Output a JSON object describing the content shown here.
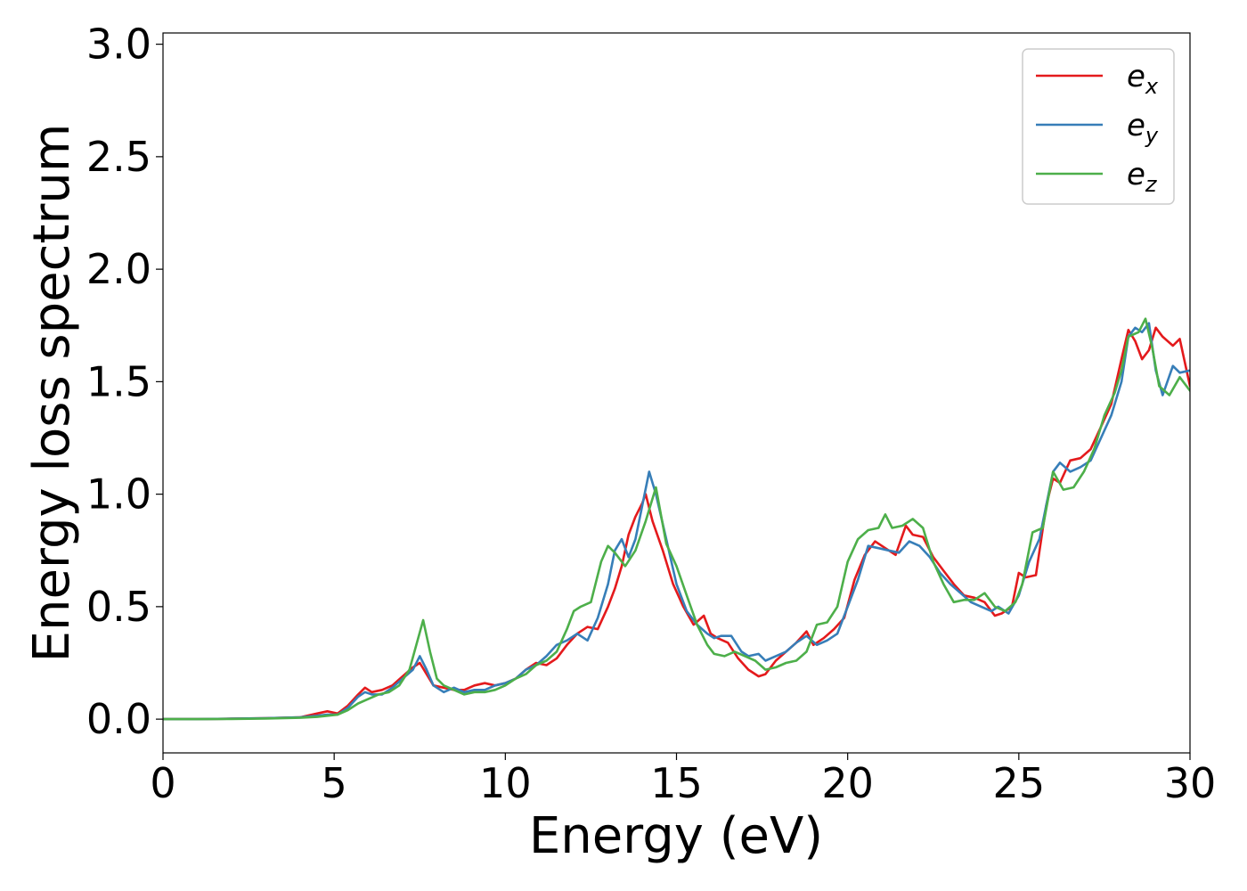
{
  "chart_data": {
    "type": "line",
    "title": "",
    "xlabel": "Energy (eV)",
    "ylabel": "Energy loss spectrum",
    "xlim": [
      0,
      30
    ],
    "ylim": [
      -0.15,
      3.05
    ],
    "xticks": [
      0,
      5,
      10,
      15,
      20,
      25,
      30
    ],
    "xtick_labels": [
      "0",
      "5",
      "10",
      "15",
      "20",
      "25",
      "30"
    ],
    "yticks": [
      0.0,
      0.5,
      1.0,
      1.5,
      2.0,
      2.5,
      3.0
    ],
    "ytick_labels": [
      "0.0",
      "0.5",
      "1.0",
      "1.5",
      "2.0",
      "2.5",
      "3.0"
    ],
    "grid": false,
    "legend_position": "top-right",
    "series": [
      {
        "name": "e",
        "subscript": "x",
        "color": "#e41a1c",
        "x": [
          0,
          1,
          2,
          3,
          4,
          4.5,
          4.8,
          5.1,
          5.4,
          5.7,
          5.9,
          6.1,
          6.4,
          6.7,
          7.0,
          7.3,
          7.5,
          7.7,
          7.9,
          8.2,
          8.5,
          8.8,
          9.1,
          9.4,
          9.7,
          10.0,
          10.3,
          10.6,
          10.9,
          11.2,
          11.5,
          11.8,
          12.1,
          12.4,
          12.7,
          13.0,
          13.2,
          13.4,
          13.6,
          13.8,
          14.0,
          14.1,
          14.3,
          14.6,
          14.9,
          15.2,
          15.5,
          15.8,
          16.0,
          16.2,
          16.5,
          16.8,
          17.1,
          17.4,
          17.6,
          17.9,
          18.2,
          18.5,
          18.8,
          19.0,
          19.3,
          19.6,
          19.9,
          20.2,
          20.5,
          20.8,
          21.1,
          21.4,
          21.7,
          21.9,
          22.2,
          22.5,
          22.8,
          23.1,
          23.4,
          23.7,
          24.0,
          24.3,
          24.5,
          24.8,
          25.0,
          25.2,
          25.5,
          25.8,
          26.0,
          26.2,
          26.5,
          26.8,
          27.1,
          27.4,
          27.7,
          28.0,
          28.2,
          28.4,
          28.6,
          28.8,
          29.0,
          29.2,
          29.5,
          29.7,
          30.0
        ],
        "values": [
          0.0,
          0.0,
          0.002,
          0.004,
          0.008,
          0.025,
          0.035,
          0.025,
          0.06,
          0.11,
          0.14,
          0.12,
          0.13,
          0.15,
          0.19,
          0.23,
          0.25,
          0.2,
          0.15,
          0.14,
          0.13,
          0.13,
          0.15,
          0.16,
          0.15,
          0.16,
          0.18,
          0.22,
          0.25,
          0.24,
          0.27,
          0.33,
          0.38,
          0.41,
          0.4,
          0.5,
          0.58,
          0.68,
          0.82,
          0.9,
          0.96,
          1.0,
          0.88,
          0.75,
          0.6,
          0.5,
          0.42,
          0.46,
          0.38,
          0.36,
          0.34,
          0.27,
          0.22,
          0.19,
          0.2,
          0.26,
          0.3,
          0.34,
          0.39,
          0.33,
          0.36,
          0.4,
          0.45,
          0.62,
          0.73,
          0.79,
          0.76,
          0.73,
          0.86,
          0.82,
          0.81,
          0.72,
          0.66,
          0.6,
          0.55,
          0.54,
          0.52,
          0.46,
          0.47,
          0.5,
          0.65,
          0.63,
          0.64,
          0.95,
          1.07,
          1.05,
          1.15,
          1.16,
          1.2,
          1.3,
          1.4,
          1.6,
          1.73,
          1.68,
          1.6,
          1.64,
          1.74,
          1.7,
          1.66,
          1.69,
          1.48
        ]
      },
      {
        "name": "e",
        "subscript": "y",
        "color": "#377eb8",
        "x": [
          0,
          1,
          2,
          3,
          4,
          4.5,
          4.8,
          5.1,
          5.4,
          5.7,
          5.9,
          6.1,
          6.4,
          6.7,
          7.0,
          7.3,
          7.5,
          7.7,
          7.9,
          8.2,
          8.5,
          8.8,
          9.1,
          9.4,
          9.7,
          10.0,
          10.3,
          10.6,
          10.9,
          11.2,
          11.5,
          11.8,
          12.1,
          12.4,
          12.7,
          13.0,
          13.2,
          13.4,
          13.6,
          13.8,
          14.0,
          14.2,
          14.4,
          14.7,
          15.0,
          15.3,
          15.6,
          15.9,
          16.1,
          16.3,
          16.6,
          16.9,
          17.1,
          17.4,
          17.6,
          17.9,
          18.2,
          18.5,
          18.8,
          19.1,
          19.4,
          19.7,
          20.0,
          20.3,
          20.6,
          20.9,
          21.2,
          21.5,
          21.8,
          22.1,
          22.4,
          22.7,
          23.0,
          23.3,
          23.6,
          23.9,
          24.2,
          24.4,
          24.7,
          25.0,
          25.3,
          25.6,
          25.8,
          26.0,
          26.2,
          26.5,
          26.8,
          27.1,
          27.4,
          27.7,
          28.0,
          28.2,
          28.4,
          28.6,
          28.8,
          29.0,
          29.2,
          29.5,
          29.7,
          30.0
        ],
        "values": [
          0.0,
          0.0,
          0.002,
          0.004,
          0.008,
          0.015,
          0.02,
          0.02,
          0.05,
          0.1,
          0.12,
          0.11,
          0.11,
          0.14,
          0.18,
          0.22,
          0.28,
          0.22,
          0.15,
          0.12,
          0.14,
          0.12,
          0.13,
          0.13,
          0.15,
          0.16,
          0.18,
          0.22,
          0.24,
          0.28,
          0.33,
          0.35,
          0.38,
          0.35,
          0.45,
          0.6,
          0.75,
          0.8,
          0.72,
          0.8,
          0.95,
          1.1,
          1.0,
          0.8,
          0.6,
          0.48,
          0.42,
          0.38,
          0.36,
          0.37,
          0.37,
          0.3,
          0.28,
          0.29,
          0.26,
          0.28,
          0.3,
          0.34,
          0.37,
          0.33,
          0.35,
          0.38,
          0.5,
          0.62,
          0.77,
          0.76,
          0.75,
          0.74,
          0.79,
          0.77,
          0.72,
          0.65,
          0.6,
          0.56,
          0.52,
          0.5,
          0.48,
          0.5,
          0.47,
          0.55,
          0.7,
          0.8,
          0.95,
          1.1,
          1.14,
          1.1,
          1.12,
          1.15,
          1.25,
          1.35,
          1.5,
          1.7,
          1.74,
          1.72,
          1.76,
          1.55,
          1.44,
          1.57,
          1.54,
          1.55
        ]
      },
      {
        "name": "e",
        "subscript": "z",
        "color": "#4daf4a",
        "x": [
          0,
          1,
          2,
          3,
          4,
          4.5,
          4.8,
          5.1,
          5.4,
          5.7,
          6.0,
          6.3,
          6.6,
          6.9,
          7.2,
          7.4,
          7.6,
          7.8,
          8.0,
          8.2,
          8.5,
          8.8,
          9.1,
          9.4,
          9.7,
          10.0,
          10.3,
          10.6,
          10.9,
          11.2,
          11.5,
          11.8,
          12.0,
          12.2,
          12.5,
          12.8,
          13.0,
          13.2,
          13.5,
          13.8,
          14.1,
          14.4,
          14.7,
          15.0,
          15.3,
          15.6,
          15.9,
          16.1,
          16.4,
          16.7,
          17.0,
          17.3,
          17.6,
          17.9,
          18.2,
          18.5,
          18.8,
          19.1,
          19.4,
          19.7,
          20.0,
          20.3,
          20.6,
          20.9,
          21.1,
          21.3,
          21.6,
          21.9,
          22.2,
          22.5,
          22.8,
          23.1,
          23.4,
          23.7,
          24.0,
          24.3,
          24.6,
          24.9,
          25.1,
          25.4,
          25.7,
          26.0,
          26.3,
          26.6,
          26.9,
          27.2,
          27.5,
          27.8,
          28.0,
          28.2,
          28.5,
          28.7,
          28.9,
          29.1,
          29.4,
          29.7,
          30.0
        ],
        "values": [
          0.0,
          0.0,
          0.001,
          0.003,
          0.006,
          0.01,
          0.015,
          0.02,
          0.04,
          0.07,
          0.09,
          0.11,
          0.12,
          0.15,
          0.22,
          0.33,
          0.44,
          0.3,
          0.18,
          0.15,
          0.13,
          0.11,
          0.12,
          0.12,
          0.13,
          0.15,
          0.18,
          0.2,
          0.24,
          0.26,
          0.3,
          0.4,
          0.48,
          0.5,
          0.52,
          0.7,
          0.77,
          0.74,
          0.68,
          0.75,
          0.88,
          1.03,
          0.78,
          0.68,
          0.55,
          0.42,
          0.33,
          0.29,
          0.28,
          0.3,
          0.28,
          0.26,
          0.22,
          0.23,
          0.25,
          0.26,
          0.3,
          0.42,
          0.43,
          0.5,
          0.7,
          0.8,
          0.84,
          0.85,
          0.91,
          0.85,
          0.86,
          0.89,
          0.85,
          0.7,
          0.6,
          0.52,
          0.53,
          0.53,
          0.56,
          0.5,
          0.48,
          0.52,
          0.6,
          0.83,
          0.85,
          1.1,
          1.02,
          1.03,
          1.1,
          1.2,
          1.35,
          1.45,
          1.55,
          1.7,
          1.72,
          1.78,
          1.65,
          1.48,
          1.44,
          1.52,
          1.46
        ]
      }
    ]
  }
}
